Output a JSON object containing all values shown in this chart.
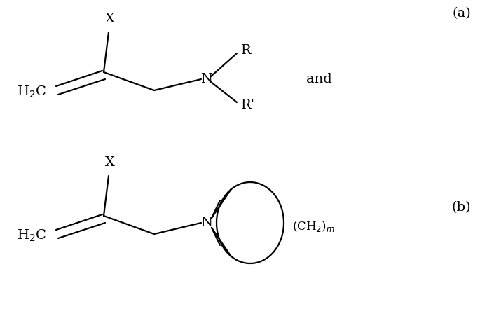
{
  "bg_color": "#ffffff",
  "line_color": "#000000",
  "font_size_label": 14,
  "font_size_small": 12,
  "label_a": "(a)",
  "label_b": "(b)",
  "and_text": "and",
  "figsize": [
    6.95,
    4.51
  ],
  "dpi": 100
}
